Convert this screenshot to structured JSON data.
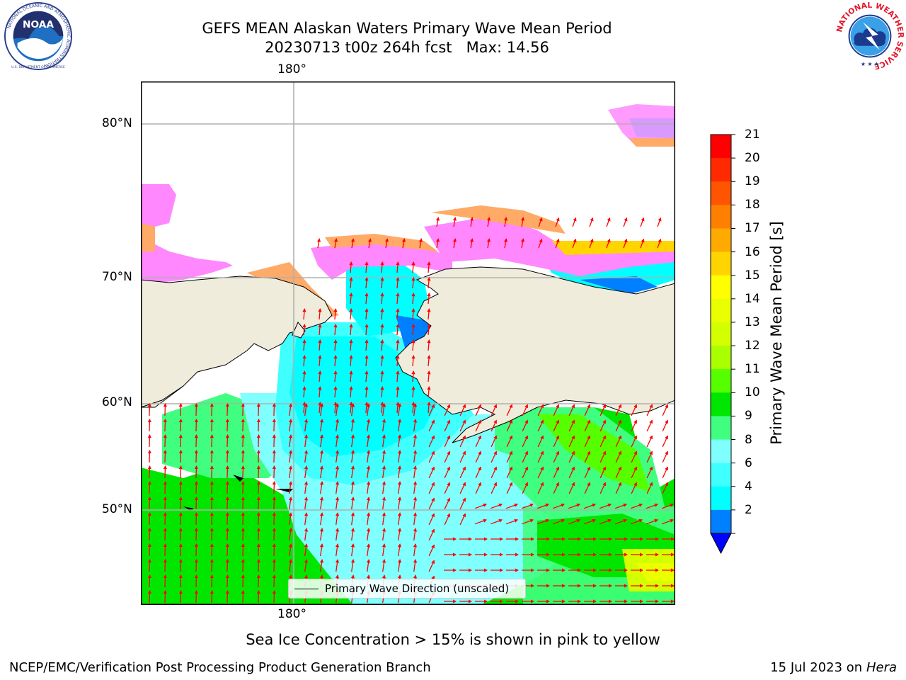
{
  "header": {
    "title_line1": "GEFS MEAN Alaskan Waters Primary Wave Mean Period",
    "title_run": "20230713 t00z 264h fcst",
    "title_max": "Max: 14.56"
  },
  "logos": {
    "noaa_text": "NOAA",
    "noaa_ring_text": "NATIONAL OCEANIC AND ATMOSPHERIC ADMINISTRATION",
    "noaa_ring_bottom": "U.S. DEPARTMENT OF COMMERCE",
    "nws_ring_text": "NATIONAL WEATHER SERVICE"
  },
  "map": {
    "lon_label": "180°",
    "lat_labels": [
      "80°N",
      "70°N",
      "60°N",
      "50°N"
    ],
    "legend_text": "Primary Wave Direction (unscaled)",
    "colors": {
      "land": "#efecdc",
      "grid": "#b0b0b0",
      "arrow": "#ff0000",
      "coast": "#000000"
    }
  },
  "colorbar": {
    "label": "Primary Wave Mean Period [s]",
    "ticks": [
      "21",
      "20",
      "19",
      "18",
      "17",
      "16",
      "15",
      "14",
      "13",
      "12",
      "11",
      "10",
      "9",
      "8",
      "6",
      "4",
      "2"
    ],
    "colors": [
      "#ff0000",
      "#ff2a00",
      "#ff5500",
      "#ff7f00",
      "#ffaa00",
      "#ffd400",
      "#ffff00",
      "#eaff00",
      "#d4ff00",
      "#aaff00",
      "#55ff00",
      "#00e600",
      "#40ff80",
      "#80ffff",
      "#40ffff",
      "#00ffff",
      "#007fff"
    ],
    "under_color": "#0000ff"
  },
  "footer": {
    "ice_note": "Sea Ice Concentration > 15% is shown in pink to yellow",
    "producer": "NCEP/EMC/Verification Post Processing Product Generation Branch",
    "date": "15 Jul 2023",
    "date_on": "on",
    "machine": "Hera"
  }
}
